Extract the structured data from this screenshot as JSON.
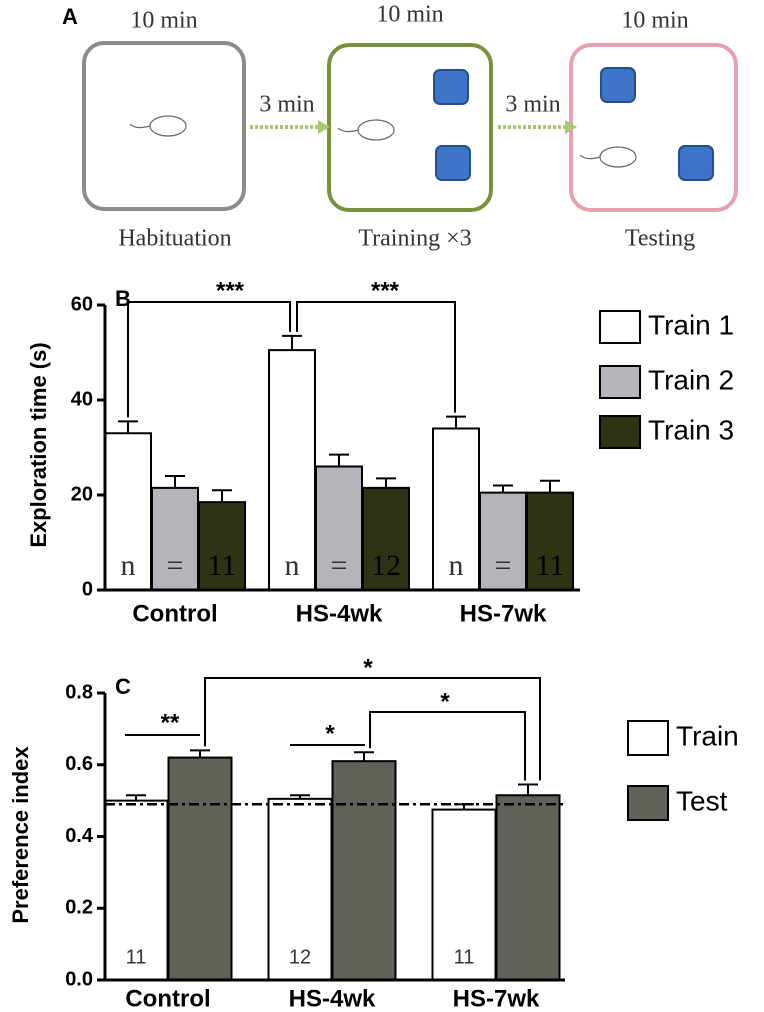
{
  "diagram": {
    "panel_label": "A",
    "stages": [
      {
        "duration": "10 min",
        "label": "Habituation"
      },
      {
        "duration": "10 min",
        "label": "Training ×3"
      },
      {
        "duration": "10 min",
        "label": "Testing"
      }
    ],
    "intervals": [
      "3 min",
      "3 min"
    ]
  },
  "chart_data": [
    {
      "type": "bar",
      "panel_label": "B",
      "y_label": "Exploration time (s)",
      "categories": [
        "Control",
        "HS-4wk",
        "HS-7wk"
      ],
      "series": [
        {
          "name": "Train 1",
          "color": "#ffffff",
          "values": [
            33,
            50.5,
            34
          ],
          "errors": [
            2.5,
            3,
            2.5
          ]
        },
        {
          "name": "Train 2",
          "color": "#b4b4ba",
          "values": [
            21.5,
            26,
            20.5
          ],
          "errors": [
            2.5,
            2.5,
            1.5
          ]
        },
        {
          "name": "Train 3",
          "color": "#2e3314",
          "values": [
            18.5,
            21.5,
            20.5
          ],
          "errors": [
            2.5,
            2,
            2.5
          ]
        }
      ],
      "ylim": [
        0,
        60
      ],
      "yticks": [
        0,
        20,
        40,
        60
      ],
      "n_labels": [
        [
          "n",
          "=",
          "11"
        ],
        [
          "n",
          "=",
          "12"
        ],
        [
          "n",
          "=",
          "11"
        ]
      ],
      "annotations": [
        "***",
        "***"
      ]
    },
    {
      "type": "bar",
      "panel_label": "C",
      "y_label": "Preference index",
      "categories": [
        "Control",
        "HS-4wk",
        "HS-7wk"
      ],
      "series": [
        {
          "name": "Train",
          "color": "#ffffff",
          "values": [
            0.5,
            0.505,
            0.475
          ],
          "errors": [
            0.015,
            0.01,
            0.015
          ]
        },
        {
          "name": "Test",
          "color": "#606159",
          "values": [
            0.62,
            0.61,
            0.515
          ],
          "errors": [
            0.02,
            0.025,
            0.03
          ]
        }
      ],
      "ylim": [
        0,
        0.8
      ],
      "yticks": [
        {
          "value": 0,
          "label": "0.0"
        },
        0.2,
        0.4,
        0.6,
        0.8
      ],
      "reference_line": 0.49,
      "n_labels": [
        "11",
        "12",
        "11"
      ],
      "annotations": [
        "**",
        "*",
        "*",
        "*"
      ]
    }
  ]
}
